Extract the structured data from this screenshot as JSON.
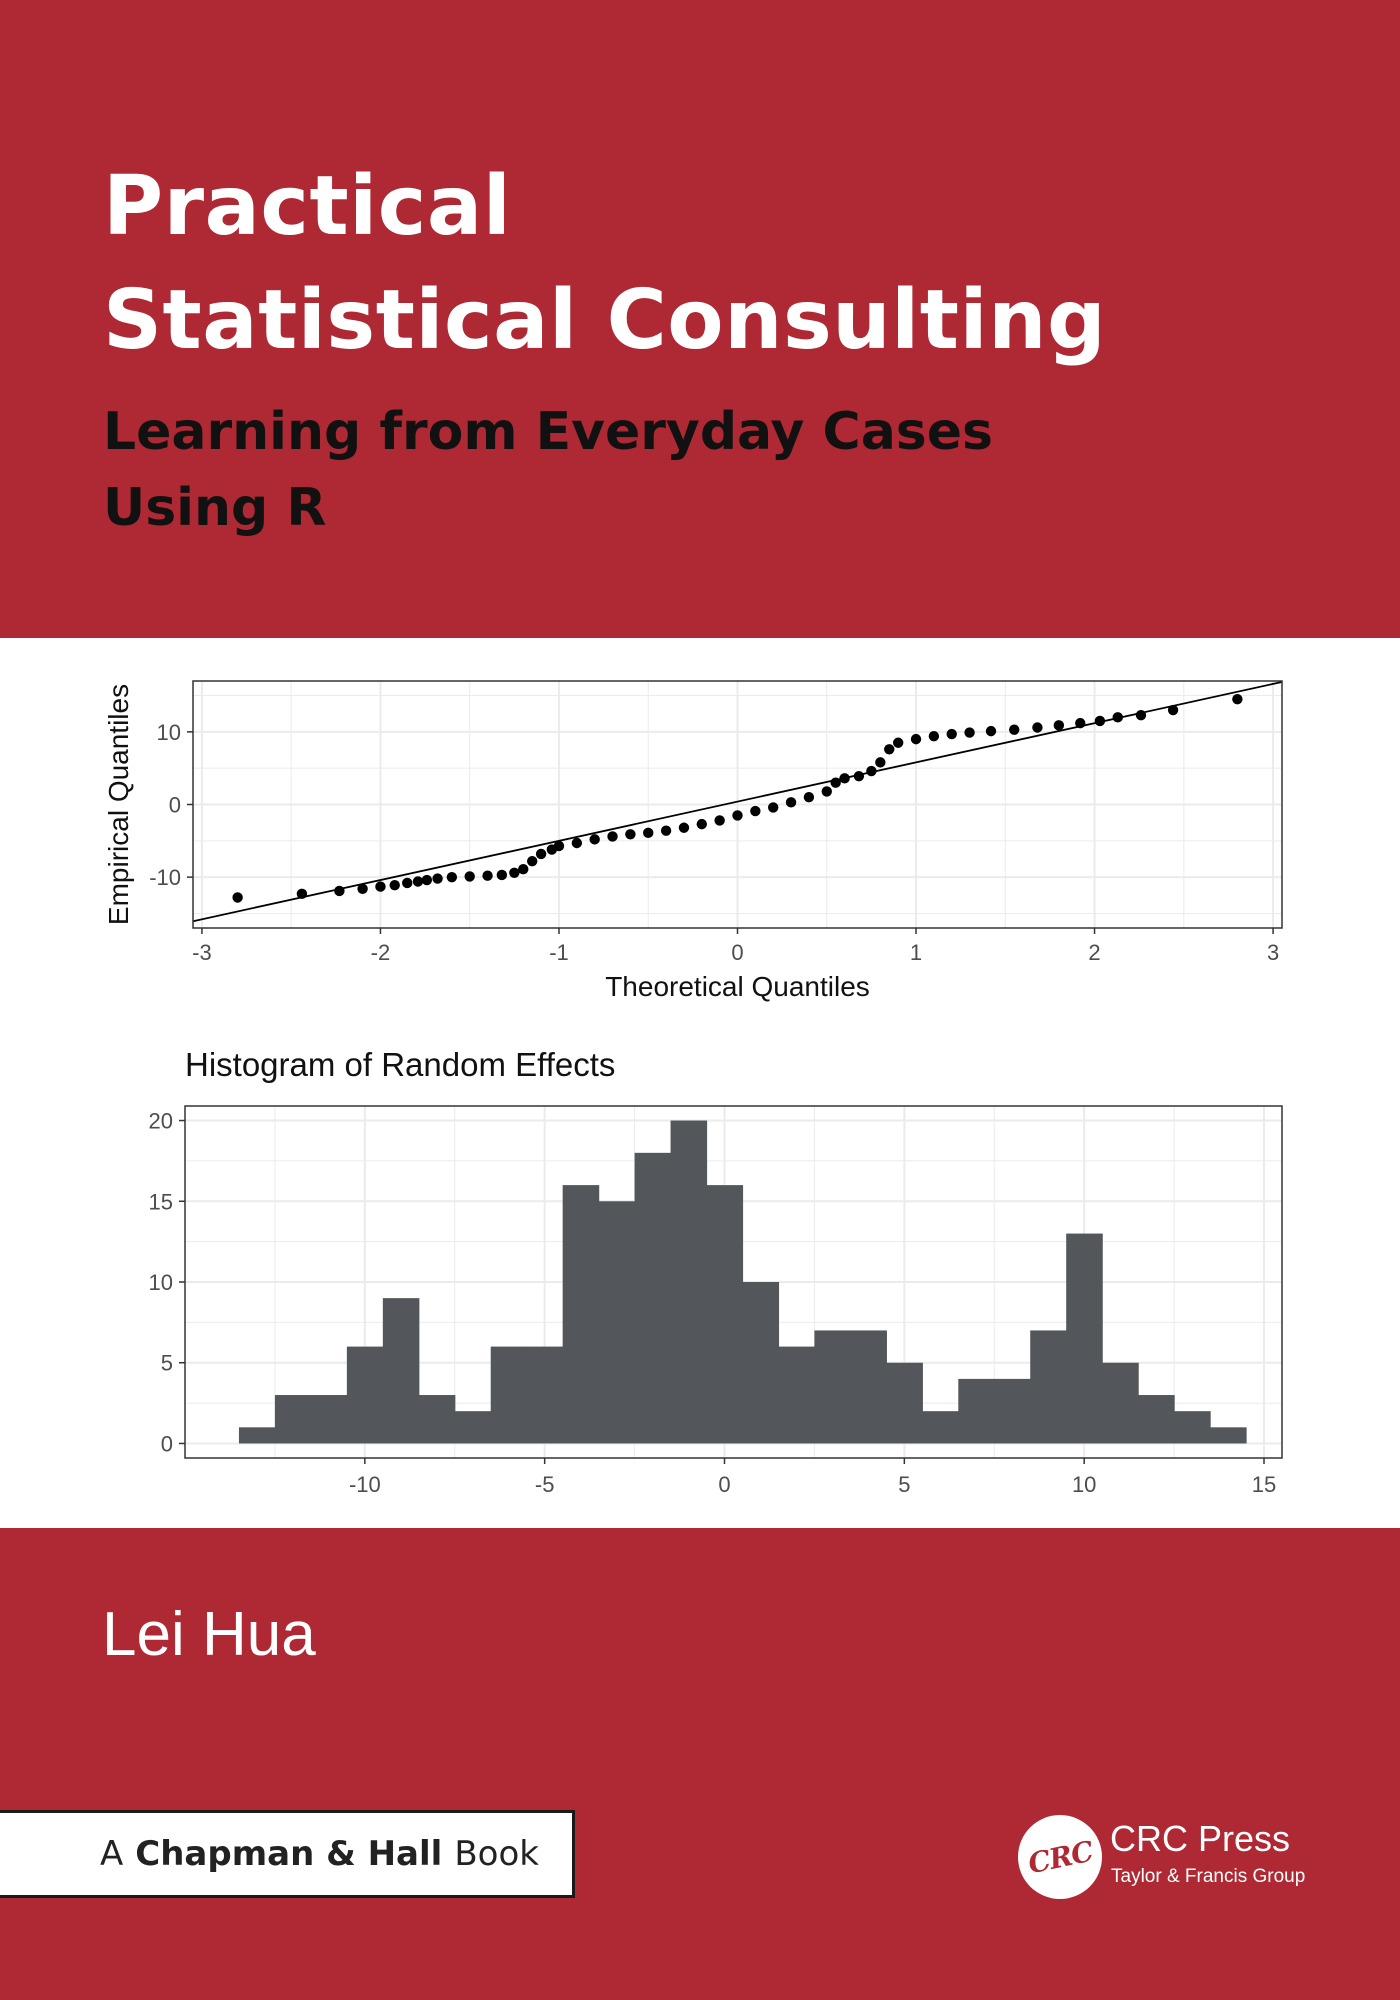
{
  "book": {
    "title_line1": "Practical",
    "title_line2": "Statistical Consulting",
    "subtitle_line1": "Learning from Everyday Cases",
    "subtitle_line2": "Using R",
    "author": "Lei Hua",
    "series_prefix": "A",
    "series_name": "Chapman & Hall",
    "series_suffix": "Book",
    "publisher_logo": "CRC",
    "publisher_name": "CRC Press",
    "publisher_group": "Taylor & Francis Group"
  },
  "colors": {
    "cover_red": "#ae2934",
    "bar_fill": "#53565a",
    "point_fill": "#000000",
    "grid": "#ebebeb"
  },
  "chart_data": [
    {
      "type": "scatter",
      "title": "",
      "xlabel": "Theoretical Quantiles",
      "ylabel": "Empirical Quantiles",
      "xlim": [
        -3.05,
        3.05
      ],
      "ylim": [
        -17,
        17
      ],
      "x_ticks": [
        "-3",
        "-2",
        "-1",
        "0",
        "1",
        "2",
        "3"
      ],
      "y_ticks": [
        "-10",
        "0",
        "10"
      ],
      "grid": true,
      "reference_line": {
        "intercept": 0.4,
        "slope": 5.4
      },
      "points": [
        [
          -2.8,
          -12.8
        ],
        [
          -2.44,
          -12.3
        ],
        [
          -2.23,
          -11.9
        ],
        [
          -2.1,
          -11.6
        ],
        [
          -2.0,
          -11.3
        ],
        [
          -1.92,
          -11.1
        ],
        [
          -1.85,
          -10.8
        ],
        [
          -1.79,
          -10.6
        ],
        [
          -1.74,
          -10.4
        ],
        [
          -1.68,
          -10.2
        ],
        [
          -1.6,
          -10.0
        ],
        [
          -1.5,
          -9.9
        ],
        [
          -1.4,
          -9.8
        ],
        [
          -1.32,
          -9.7
        ],
        [
          -1.25,
          -9.4
        ],
        [
          -1.2,
          -8.9
        ],
        [
          -1.15,
          -7.8
        ],
        [
          -1.1,
          -6.8
        ],
        [
          -1.04,
          -6.2
        ],
        [
          -1.0,
          -5.7
        ],
        [
          -0.9,
          -5.3
        ],
        [
          -0.8,
          -4.8
        ],
        [
          -0.7,
          -4.4
        ],
        [
          -0.6,
          -4.1
        ],
        [
          -0.5,
          -3.9
        ],
        [
          -0.4,
          -3.6
        ],
        [
          -0.3,
          -3.2
        ],
        [
          -0.2,
          -2.7
        ],
        [
          -0.1,
          -2.2
        ],
        [
          0.0,
          -1.5
        ],
        [
          0.1,
          -0.9
        ],
        [
          0.2,
          -0.4
        ],
        [
          0.3,
          0.3
        ],
        [
          0.4,
          1.0
        ],
        [
          0.5,
          1.8
        ],
        [
          0.55,
          3.0
        ],
        [
          0.6,
          3.6
        ],
        [
          0.68,
          3.9
        ],
        [
          0.75,
          4.6
        ],
        [
          0.8,
          5.8
        ],
        [
          0.85,
          7.6
        ],
        [
          0.9,
          8.5
        ],
        [
          1.0,
          9.0
        ],
        [
          1.1,
          9.4
        ],
        [
          1.2,
          9.7
        ],
        [
          1.3,
          9.9
        ],
        [
          1.42,
          10.1
        ],
        [
          1.55,
          10.3
        ],
        [
          1.68,
          10.6
        ],
        [
          1.8,
          10.9
        ],
        [
          1.92,
          11.2
        ],
        [
          2.03,
          11.5
        ],
        [
          2.13,
          12.0
        ],
        [
          2.26,
          12.3
        ],
        [
          2.44,
          13.0
        ],
        [
          2.8,
          14.5
        ]
      ]
    },
    {
      "type": "bar",
      "title": "Histogram of Random Effects",
      "xlabel": "",
      "ylabel": "",
      "xlim": [
        -15,
        15.5
      ],
      "ylim": [
        -0.9,
        20.9
      ],
      "x_ticks": [
        "-10",
        "-5",
        "0",
        "5",
        "10",
        "15"
      ],
      "y_ticks": [
        "0",
        "5",
        "10",
        "15",
        "20"
      ],
      "grid": true,
      "bin_width": 1,
      "bin_starts": [
        -13.5,
        -12.5,
        -11.5,
        -10.5,
        -9.5,
        -8.5,
        -7.5,
        -6.5,
        -5.5,
        -4.5,
        -3.5,
        -2.5,
        -1.5,
        -0.5,
        0.5,
        1.5,
        2.5,
        3.5,
        4.5,
        5.5,
        6.5,
        7.5,
        8.5,
        9.5,
        10.5,
        11.5,
        12.5,
        13.5
      ],
      "values": [
        1,
        3,
        3,
        6,
        9,
        3,
        2,
        6,
        6,
        16,
        15,
        18,
        20,
        16,
        10,
        6,
        7,
        7,
        5,
        2,
        4,
        4,
        7,
        13,
        5,
        3,
        2,
        1
      ]
    }
  ]
}
